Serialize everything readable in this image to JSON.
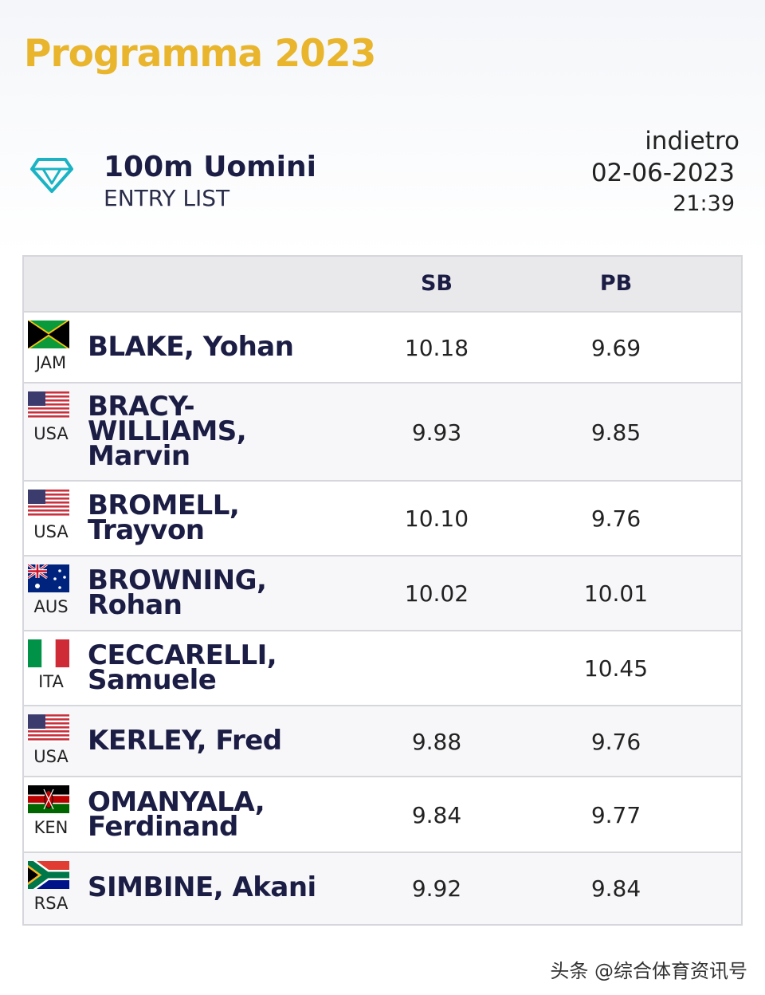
{
  "header": {
    "brand": "Programma 2023",
    "event_title": "100m Uomini",
    "event_subtitle": "ENTRY LIST",
    "back_link": "indietro",
    "date": "02-06-2023",
    "time": "21:39",
    "logo_icon": "diamond-icon",
    "accent_color": "#e8b52c"
  },
  "table": {
    "columns": [
      "SB",
      "PB"
    ],
    "rows": [
      {
        "flag": "jam-flag-icon",
        "country": "JAM",
        "name": "BLAKE, Yohan",
        "sb": "10.18",
        "pb": "9.69"
      },
      {
        "flag": "usa-flag-icon",
        "country": "USA",
        "name": "BRACY-WILLIAMS, Marvin",
        "sb": "9.93",
        "pb": "9.85"
      },
      {
        "flag": "usa-flag-icon",
        "country": "USA",
        "name": "BROMELL, Trayvon",
        "sb": "10.10",
        "pb": "9.76"
      },
      {
        "flag": "aus-flag-icon",
        "country": "AUS",
        "name": "BROWNING, Rohan",
        "sb": "10.02",
        "pb": "10.01"
      },
      {
        "flag": "ita-flag-icon",
        "country": "ITA",
        "name": "CECCARELLI, Samuele",
        "sb": "",
        "pb": "10.45"
      },
      {
        "flag": "usa-flag-icon",
        "country": "USA",
        "name": "KERLEY, Fred",
        "sb": "9.88",
        "pb": "9.76"
      },
      {
        "flag": "ken-flag-icon",
        "country": "KEN",
        "name": "OMANYALA, Ferdinand",
        "sb": "9.84",
        "pb": "9.77"
      },
      {
        "flag": "rsa-flag-icon",
        "country": "RSA",
        "name": "SIMBINE, Akani",
        "sb": "9.92",
        "pb": "9.84"
      }
    ]
  },
  "watermark": "头条 @综合体育资讯号"
}
